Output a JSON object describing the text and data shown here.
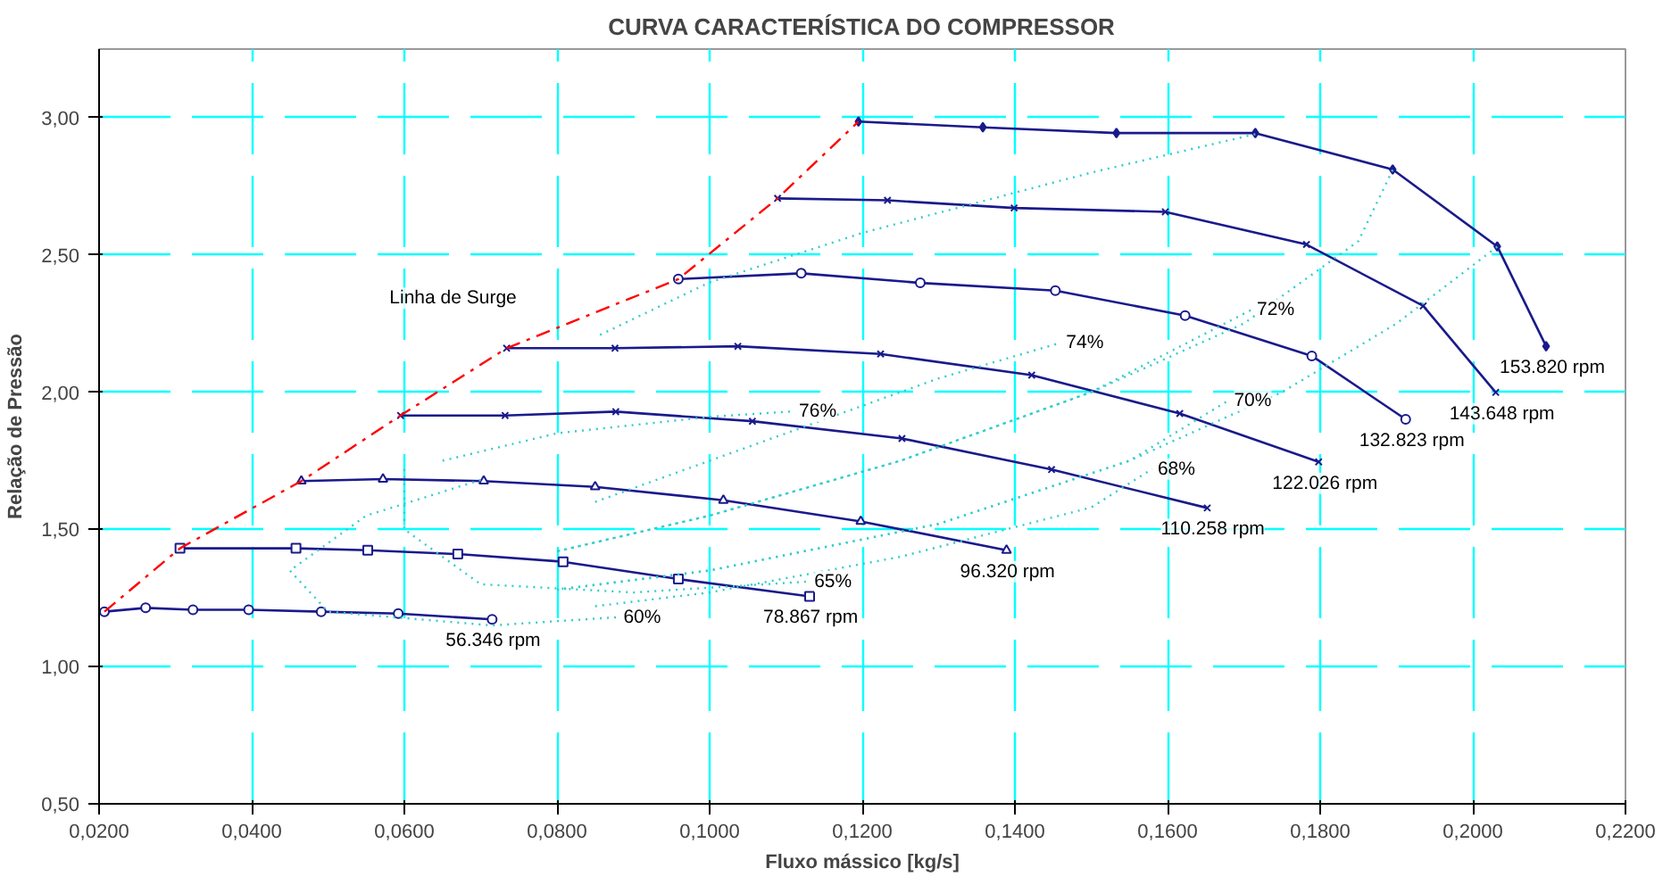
{
  "chart_data": {
    "type": "line",
    "title": "CURVA CARACTERÍSTICA DO COMPRESSOR",
    "xlabel": "Fluxo mássico [kg/s]",
    "ylabel": "Relação de Pressão",
    "xlim": [
      0.02,
      0.22
    ],
    "ylim": [
      0.5,
      3.25
    ],
    "xticks": [
      {
        "value": 0.02,
        "label": "0,0200"
      },
      {
        "value": 0.04,
        "label": "0,0400"
      },
      {
        "value": 0.06,
        "label": "0,0600"
      },
      {
        "value": 0.08,
        "label": "0,0800"
      },
      {
        "value": 0.1,
        "label": "0,1000"
      },
      {
        "value": 0.12,
        "label": "0,1200"
      },
      {
        "value": 0.14,
        "label": "0,1400"
      },
      {
        "value": 0.16,
        "label": "0,1600"
      },
      {
        "value": 0.18,
        "label": "0,1800"
      },
      {
        "value": 0.2,
        "label": "0,2000"
      },
      {
        "value": 0.22,
        "label": "0,2200"
      }
    ],
    "yticks": [
      {
        "value": 0.5,
        "label": "0,50"
      },
      {
        "value": 1.0,
        "label": "1,00"
      },
      {
        "value": 1.5,
        "label": "1,50"
      },
      {
        "value": 2.0,
        "label": "2,00"
      },
      {
        "value": 2.5,
        "label": "2,50"
      },
      {
        "value": 3.0,
        "label": "3,00"
      }
    ],
    "grid": true,
    "series": [
      {
        "name": "56.346 rpm",
        "color": "#1a1a8c",
        "marker": "circle",
        "line_style": "solid",
        "x": [
          0.0207,
          0.0261,
          0.0323,
          0.0396,
          0.0491,
          0.0592,
          0.0715
        ],
        "values": [
          1.2,
          1.214,
          1.207,
          1.207,
          1.2,
          1.193,
          1.172
        ]
      },
      {
        "name": "78.867 rpm",
        "color": "#1a1a8c",
        "marker": "square",
        "line_style": "solid",
        "x": [
          0.0306,
          0.0458,
          0.0552,
          0.067,
          0.0808,
          0.0959,
          0.1131
        ],
        "values": [
          1.431,
          1.431,
          1.424,
          1.41,
          1.382,
          1.319,
          1.256
        ]
      },
      {
        "name": "96.320 rpm",
        "color": "#1a1a8c",
        "marker": "triangle",
        "line_style": "solid",
        "x": [
          0.0465,
          0.0572,
          0.0704,
          0.085,
          0.1018,
          0.1198,
          0.1389
        ],
        "values": [
          1.676,
          1.683,
          1.676,
          1.655,
          1.606,
          1.529,
          1.424
        ]
      },
      {
        "name": "110.258 rpm",
        "color": "#1a1a8c",
        "marker": "cross",
        "line_style": "solid",
        "x": [
          0.0595,
          0.0732,
          0.0877,
          0.1056,
          0.1252,
          0.1448,
          0.1652
        ],
        "values": [
          1.915,
          1.915,
          1.929,
          1.894,
          1.831,
          1.718,
          1.578
        ]
      },
      {
        "name": "122.026 rpm",
        "color": "#1a1a8c",
        "marker": "cross",
        "line_style": "solid",
        "x": [
          0.0734,
          0.0876,
          0.1037,
          0.1224,
          0.1422,
          0.1616,
          0.1798
        ],
        "values": [
          2.16,
          2.16,
          2.167,
          2.139,
          2.062,
          1.922,
          1.746
        ]
      },
      {
        "name": "132.823 rpm",
        "color": "#1a1a8c",
        "marker": "circle",
        "line_style": "solid",
        "x": [
          0.0959,
          0.112,
          0.1276,
          0.1453,
          0.1623,
          0.1789,
          0.1912
        ],
        "values": [
          2.412,
          2.433,
          2.398,
          2.37,
          2.279,
          2.132,
          1.901
        ]
      },
      {
        "name": "143.648 rpm",
        "color": "#1a1a8c",
        "marker": "cross",
        "line_style": "solid",
        "x": [
          0.1089,
          0.1233,
          0.1399,
          0.1597,
          0.1782,
          0.1935,
          0.203
        ],
        "values": [
          2.706,
          2.699,
          2.671,
          2.657,
          2.538,
          2.314,
          1.999
        ]
      },
      {
        "name": "153.820 rpm",
        "color": "#1a1a8c",
        "marker": "diamond",
        "line_style": "solid",
        "x": [
          0.1195,
          0.1358,
          0.1533,
          0.1715,
          0.1895,
          0.2032,
          0.2096
        ],
        "values": [
          2.986,
          2.965,
          2.944,
          2.944,
          2.811,
          2.531,
          2.167
        ]
      },
      {
        "name": "Linha de Surge",
        "color": "#ff0000",
        "line_style": "dashed",
        "x": [
          0.0207,
          0.0306,
          0.0465,
          0.0595,
          0.0734,
          0.0959,
          0.1089,
          0.1195
        ],
        "values": [
          1.2,
          1.431,
          1.676,
          1.915,
          2.16,
          2.412,
          2.706,
          2.986
        ]
      },
      {
        "name": "60%",
        "color": "#33cccc",
        "line_style": "dotted",
        "x": [
          0.07,
          0.055,
          0.045,
          0.05,
          0.0715,
          0.088
        ],
        "values": [
          1.68,
          1.55,
          1.35,
          1.2,
          1.15,
          1.18
        ]
      },
      {
        "name": "65%",
        "color": "#33cccc",
        "line_style": "dotted",
        "x": [
          0.06,
          0.06,
          0.07,
          0.09,
          0.113
        ],
        "values": [
          1.72,
          1.5,
          1.3,
          1.27,
          1.31
        ]
      },
      {
        "name": "68%",
        "color": "#33cccc",
        "line_style": "dotted",
        "x": [
          0.085,
          0.1,
          0.125,
          0.15,
          0.158
        ],
        "values": [
          1.22,
          1.27,
          1.4,
          1.58,
          1.72
        ]
      },
      {
        "name": "70%",
        "color": "#33cccc",
        "line_style": "dotted",
        "x": [
          0.08,
          0.1,
          0.13,
          0.155,
          0.168
        ],
        "values": [
          1.28,
          1.35,
          1.52,
          1.75,
          1.97
        ]
      },
      {
        "name": "72%",
        "color": "#33cccc",
        "line_style": "dotted",
        "x": [
          0.08,
          0.1,
          0.125,
          0.15,
          0.171
        ],
        "values": [
          1.42,
          1.55,
          1.75,
          2.0,
          2.3
        ]
      },
      {
        "name": "74%",
        "color": "#33cccc",
        "line_style": "dotted",
        "x": [
          0.085,
          0.11,
          0.13,
          0.146
        ],
        "values": [
          1.6,
          1.85,
          2.05,
          2.18
        ]
      },
      {
        "name": "76%",
        "color": "#33cccc",
        "line_style": "dotted",
        "x": [
          0.065,
          0.08,
          0.1,
          0.111
        ],
        "values": [
          1.75,
          1.85,
          1.91,
          1.93
        ]
      },
      {
        "color": "#33cccc",
        "line_style": "dotted",
        "x": [
          0.1715,
          0.15,
          0.12,
          0.1,
          0.085
        ],
        "values": [
          2.94,
          2.8,
          2.58,
          2.4,
          2.2
        ]
      },
      {
        "color": "#33cccc",
        "line_style": "dotted",
        "x": [
          0.1895,
          0.185,
          0.17,
          0.15,
          0.125,
          0.1,
          0.08
        ],
        "values": [
          2.81,
          2.55,
          2.25,
          2.0,
          1.75,
          1.55,
          1.42
        ]
      },
      {
        "color": "#33cccc",
        "line_style": "dotted",
        "x": [
          0.2032,
          0.19,
          0.175,
          0.155,
          0.13,
          0.1,
          0.08
        ],
        "values": [
          2.53,
          2.25,
          2.0,
          1.75,
          1.52,
          1.35,
          1.28
        ]
      }
    ]
  }
}
